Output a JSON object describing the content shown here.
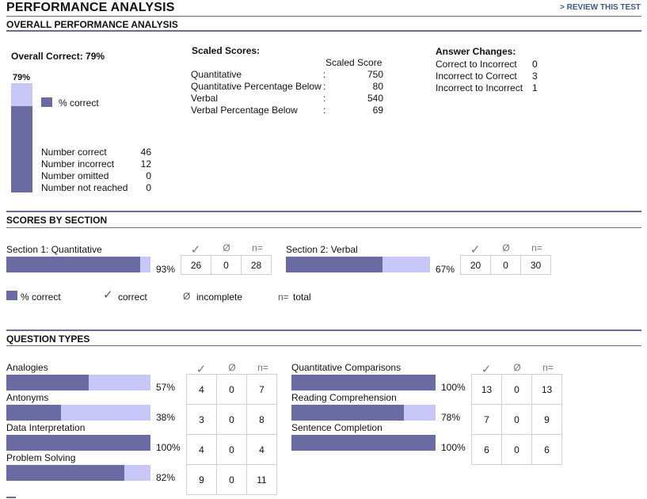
{
  "header": {
    "title": "PERFORMANCE ANALYSIS",
    "review_link": "> REVIEW THIS TEST"
  },
  "overall": {
    "heading": "OVERALL PERFORMANCE ANALYSIS",
    "overall_correct_label": "Overall Correct: 79%",
    "bar_label": "79%",
    "percent_correct": 79,
    "legend_label": "% correct",
    "counts": [
      {
        "label": "Number correct",
        "value": "46"
      },
      {
        "label": "Number incorrect",
        "value": "12"
      },
      {
        "label": "Number omitted",
        "value": "0"
      },
      {
        "label": "Number not reached",
        "value": "0"
      }
    ]
  },
  "scaled": {
    "heading": "Scaled Scores:",
    "col_header": "Scaled Score",
    "rows": [
      {
        "label": "Quantitative",
        "value": "750"
      },
      {
        "label": "Quantitative Percentage Below",
        "value": "80"
      },
      {
        "label": "Verbal",
        "value": "540"
      },
      {
        "label": "Verbal Percentage Below",
        "value": "69"
      }
    ]
  },
  "answer_changes": {
    "heading": "Answer Changes:",
    "rows": [
      {
        "label": "Correct to Incorrect",
        "value": "0"
      },
      {
        "label": "Incorrect to Correct",
        "value": "3"
      },
      {
        "label": "Incorrect to Incorrect",
        "value": "1"
      }
    ]
  },
  "sections": {
    "heading": "SCORES BY SECTION",
    "col_headers": {
      "correct": "✓",
      "incomplete": "Ø",
      "total": "n="
    },
    "items": [
      {
        "name": "Section 1: Quantitative",
        "percent": 93,
        "percent_label": "93%",
        "correct": "26",
        "incomplete": "0",
        "total": "28"
      },
      {
        "name": "Section 2: Verbal",
        "percent": 67,
        "percent_label": "67%",
        "correct": "20",
        "incomplete": "0",
        "total": "30"
      }
    ],
    "legend": {
      "percent": "% correct",
      "correct_symbol": "✓",
      "correct": "correct",
      "incomplete_symbol": "Ø",
      "incomplete": "incomplete",
      "total_symbol": "n=",
      "total": "total"
    }
  },
  "question_types": {
    "heading": "QUESTION TYPES",
    "col_headers": {
      "correct": "✓",
      "incomplete": "Ø",
      "total": "n="
    },
    "left": [
      {
        "name": "Analogies",
        "percent": 57,
        "percent_label": "57%",
        "correct": "4",
        "incomplete": "0",
        "total": "7"
      },
      {
        "name": "Antonyms",
        "percent": 38,
        "percent_label": "38%",
        "correct": "3",
        "incomplete": "0",
        "total": "8"
      },
      {
        "name": "Data Interpretation",
        "percent": 100,
        "percent_label": "100%",
        "correct": "4",
        "incomplete": "0",
        "total": "4"
      },
      {
        "name": "Problem Solving",
        "percent": 82,
        "percent_label": "82%",
        "correct": "9",
        "incomplete": "0",
        "total": "11"
      }
    ],
    "right": [
      {
        "name": "Quantitative Comparisons",
        "percent": 100,
        "percent_label": "100%",
        "correct": "13",
        "incomplete": "0",
        "total": "13"
      },
      {
        "name": "Reading Comprehension",
        "percent": 78,
        "percent_label": "78%",
        "correct": "7",
        "incomplete": "0",
        "total": "9"
      },
      {
        "name": "Sentence Completion",
        "percent": 100,
        "percent_label": "100%",
        "correct": "6",
        "incomplete": "0",
        "total": "6"
      }
    ]
  }
}
